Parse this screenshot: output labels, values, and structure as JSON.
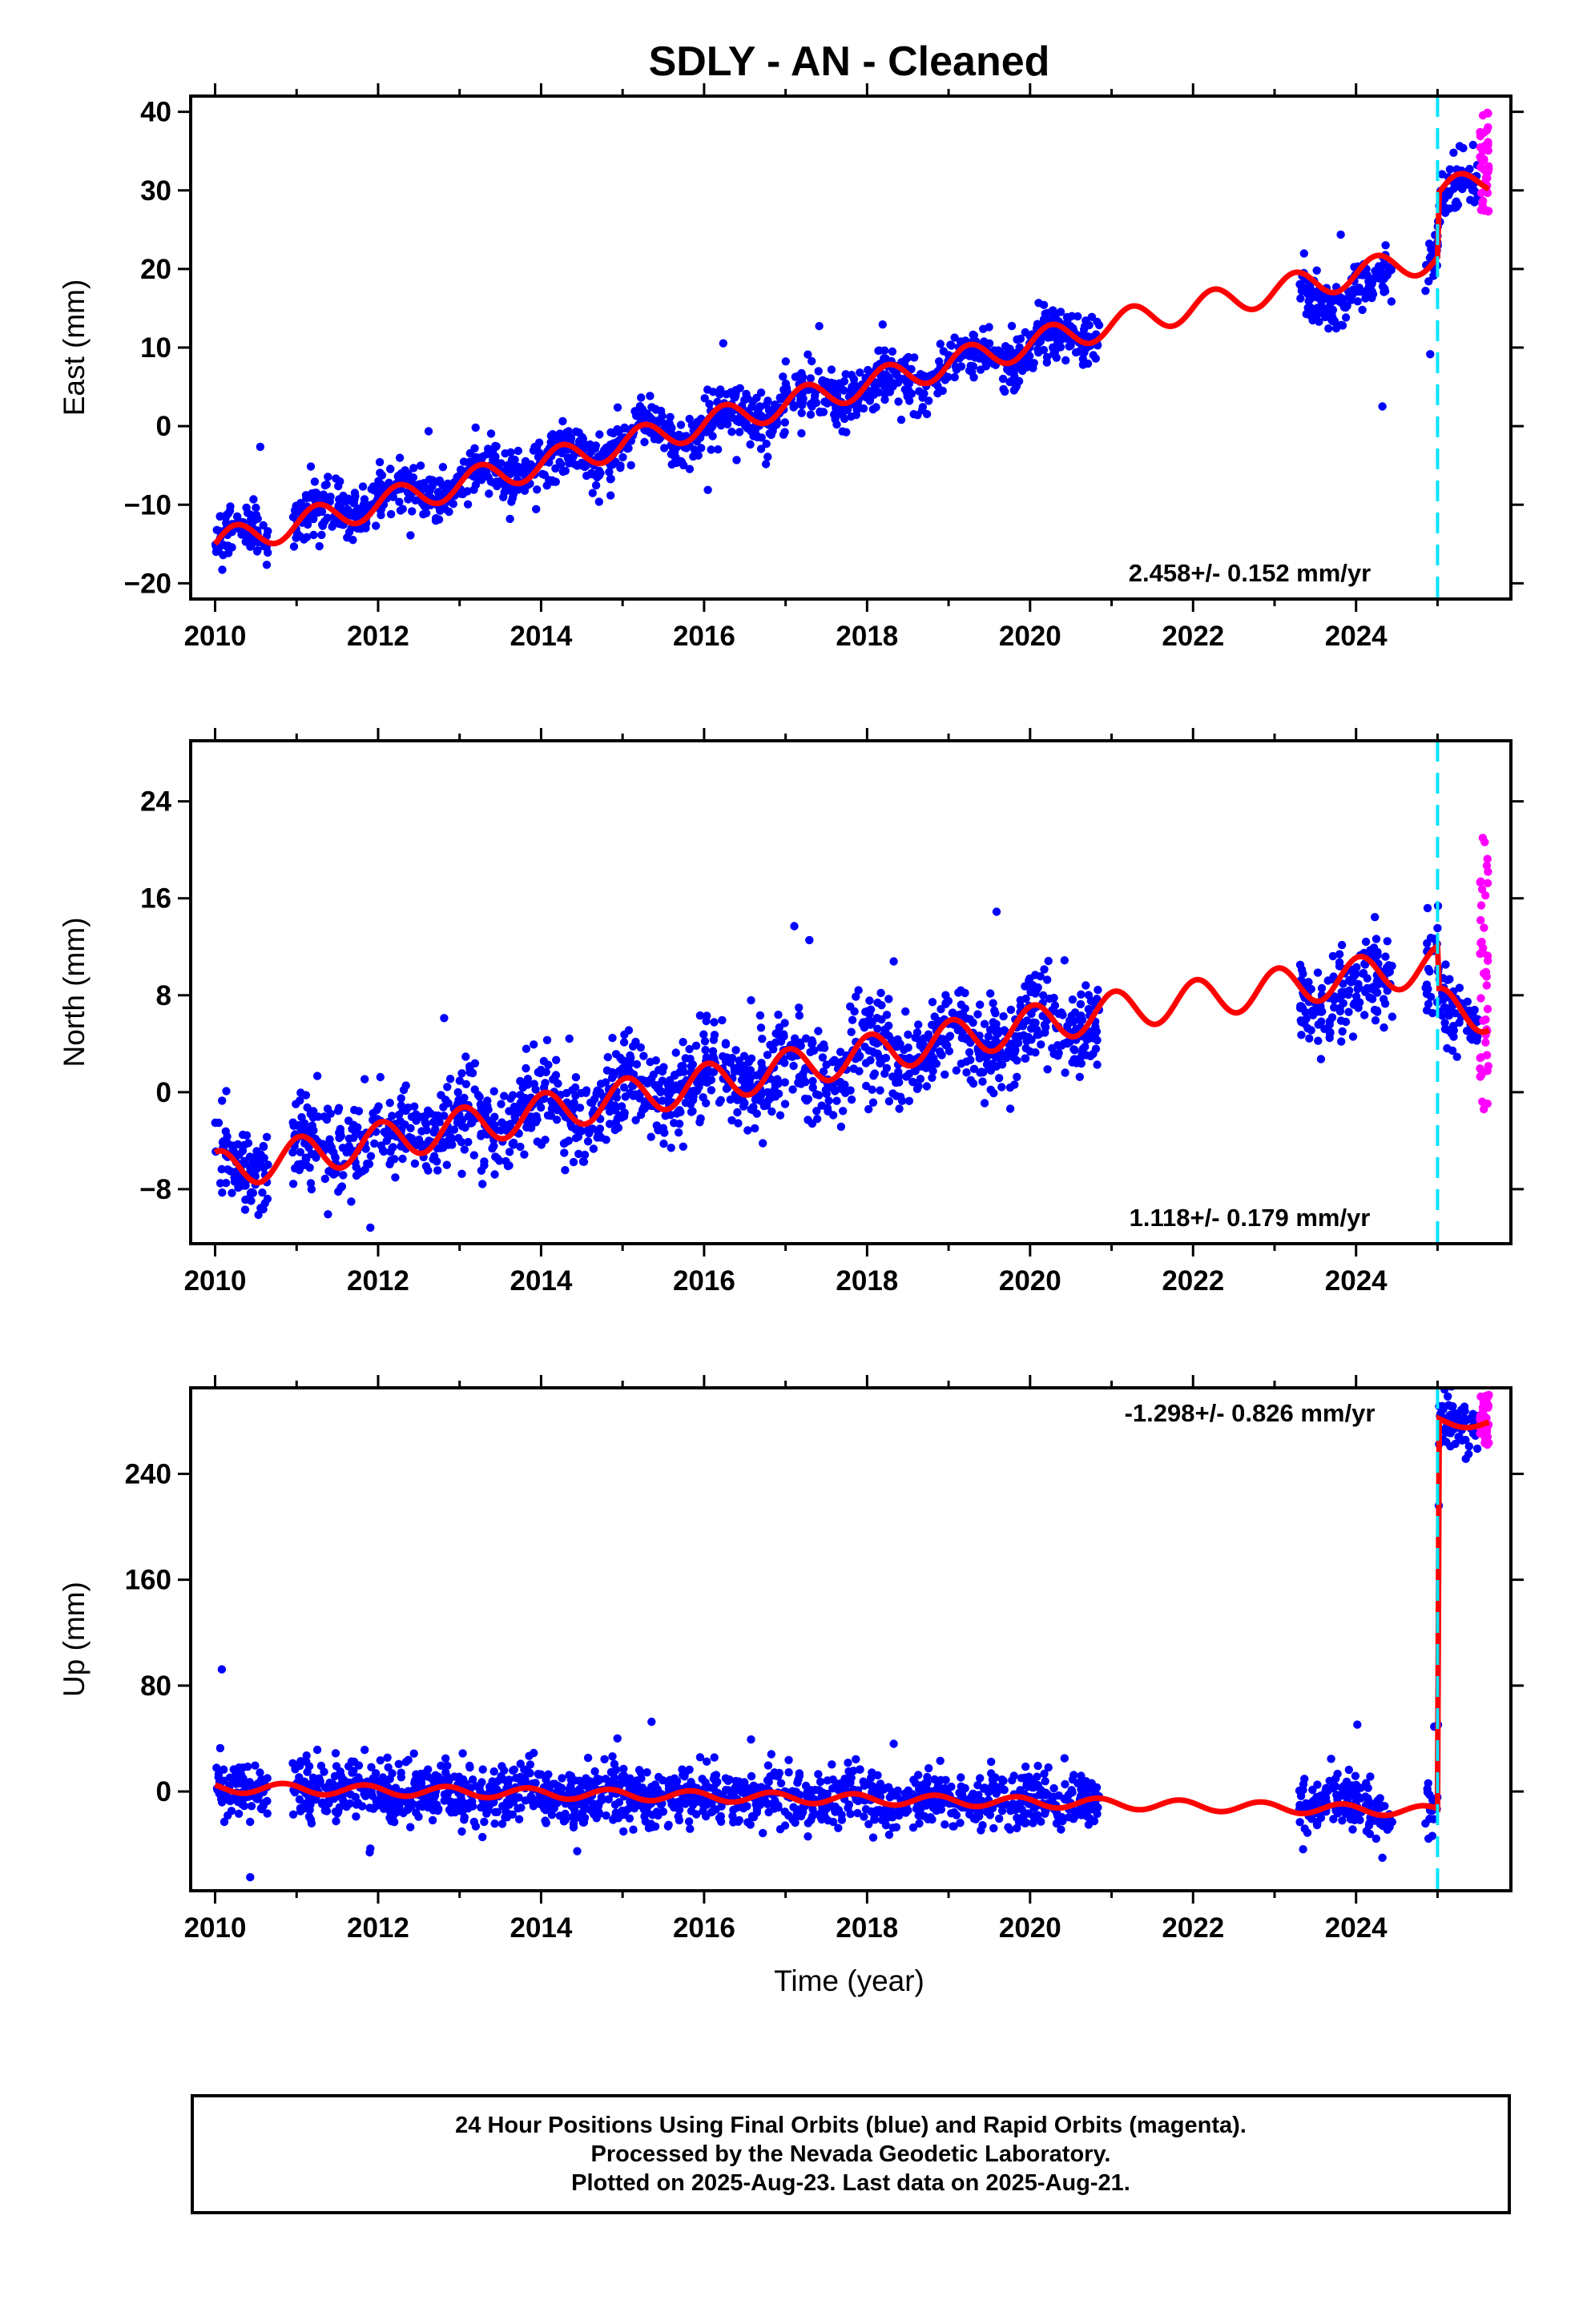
{
  "title": "SDLY  - AN - Cleaned",
  "xlabel": "Time (year)",
  "footer": {
    "line1": "24 Hour Positions Using Final Orbits (blue) and Rapid Orbits (magenta).",
    "line2": "Processed by the Nevada Geodetic Laboratory.",
    "line3": "Plotted on 2025-Aug-23. Last data on 2025-Aug-21."
  },
  "colors": {
    "final_orbits": "#0000ff",
    "rapid_orbits": "#ff00ff",
    "model": "#ff0000",
    "event_line": "#00e5ff"
  },
  "chart_data": [
    {
      "type": "scatter",
      "ylabel": "East (mm)",
      "xlim": [
        2009.7,
        2025.9
      ],
      "ylim": [
        -22,
        42
      ],
      "xticks": [
        2010,
        2012,
        2014,
        2016,
        2018,
        2020,
        2022,
        2024
      ],
      "yticks": [
        -20,
        -10,
        0,
        10,
        20,
        30,
        40
      ],
      "grid": false,
      "annotation": "2.458+/- 0.152 mm/yr",
      "event_line_x": 2025.0,
      "series": [
        {
          "role": "final",
          "x_segments": [
            [
              2010.0,
              2010.65
            ],
            [
              2010.95,
              2020.85
            ],
            [
              2023.3,
              2024.45
            ],
            [
              2024.85,
              2025.02
            ],
            [
              2025.02,
              2025.5
            ]
          ],
          "trend": [
            [
              2010.0,
              -14.5
            ],
            [
              2020.85,
              12.0
            ],
            [
              2023.3,
              16.5
            ],
            [
              2024.45,
              18.0
            ],
            [
              2025.0,
              22.0
            ],
            [
              2025.02,
              28.5
            ],
            [
              2025.5,
              31.0
            ]
          ],
          "scatter_sd": 1.6
        },
        {
          "role": "rapid",
          "x_range": [
            2025.52,
            2025.63
          ],
          "y_range": [
            27,
            40
          ]
        },
        {
          "role": "model",
          "anchor": [
            [
              2010.0,
              -15.0
            ],
            [
              2020.8,
              12.5
            ],
            [
              2025.0,
              21.5
            ],
            [
              2025.02,
              29.5
            ],
            [
              2025.63,
              31.5
            ]
          ],
          "seasonal_amplitude": 1.8
        }
      ]
    },
    {
      "type": "scatter",
      "ylabel": "North (mm)",
      "xlim": [
        2009.7,
        2025.9
      ],
      "ylim": [
        -12.5,
        29
      ],
      "xticks": [
        2010,
        2012,
        2014,
        2016,
        2018,
        2020,
        2022,
        2024
      ],
      "yticks": [
        -8,
        0,
        8,
        16,
        24
      ],
      "grid": false,
      "annotation": "1.118+/- 0.179 mm/yr",
      "event_line_x": 2025.0,
      "series": [
        {
          "role": "final",
          "x_segments": [
            [
              2010.0,
              2010.65
            ],
            [
              2010.95,
              2020.85
            ],
            [
              2023.3,
              2024.45
            ],
            [
              2024.85,
              2025.02
            ],
            [
              2025.02,
              2025.5
            ]
          ],
          "trend": [
            [
              2010.0,
              -6.0
            ],
            [
              2020.85,
              6.0
            ],
            [
              2023.3,
              7.5
            ],
            [
              2024.45,
              9.0
            ],
            [
              2025.0,
              10.5
            ],
            [
              2025.02,
              7.0
            ],
            [
              2025.5,
              6.0
            ]
          ],
          "scatter_sd": 1.9
        },
        {
          "role": "rapid",
          "x_range": [
            2025.52,
            2025.63
          ],
          "y_range": [
            -1.5,
            21
          ]
        },
        {
          "role": "model",
          "anchor": [
            [
              2010.0,
              -6.5
            ],
            [
              2020.8,
              6.5
            ],
            [
              2025.0,
              10.5
            ],
            [
              2025.02,
              7.0
            ],
            [
              2025.63,
              6.5
            ]
          ],
          "seasonal_amplitude": 1.6
        }
      ]
    },
    {
      "type": "scatter",
      "ylabel": "Up (mm)",
      "xlim": [
        2009.7,
        2025.9
      ],
      "ylim": [
        -75,
        305
      ],
      "xticks": [
        2010,
        2012,
        2014,
        2016,
        2018,
        2020,
        2022,
        2024
      ],
      "yticks": [
        0,
        80,
        160,
        240
      ],
      "grid": false,
      "annotation": "-1.298+/- 0.826 mm/yr",
      "event_line_x": 2025.0,
      "series": [
        {
          "role": "final",
          "x_segments": [
            [
              2010.0,
              2010.65
            ],
            [
              2010.95,
              2020.85
            ],
            [
              2023.3,
              2024.45
            ],
            [
              2024.85,
              2025.02
            ],
            [
              2025.02,
              2025.5
            ]
          ],
          "trend": [
            [
              2010.0,
              3.0
            ],
            [
              2020.85,
              -9.0
            ],
            [
              2023.3,
              -12.0
            ],
            [
              2024.45,
              -13.0
            ],
            [
              2025.0,
              -14.0
            ],
            [
              2025.02,
              282.0
            ],
            [
              2025.5,
              280.0
            ]
          ],
          "scatter_sd": 11.0
        },
        {
          "role": "rapid",
          "x_range": [
            2025.52,
            2025.63
          ],
          "y_range": [
            262,
            300
          ]
        },
        {
          "role": "model",
          "anchor": [
            [
              2010.0,
              3.0
            ],
            [
              2020.8,
              -9.0
            ],
            [
              2025.0,
              -15.0
            ],
            [
              2025.02,
              280.0
            ],
            [
              2025.63,
              278.0
            ]
          ],
          "seasonal_amplitude": 4.0
        }
      ]
    }
  ]
}
